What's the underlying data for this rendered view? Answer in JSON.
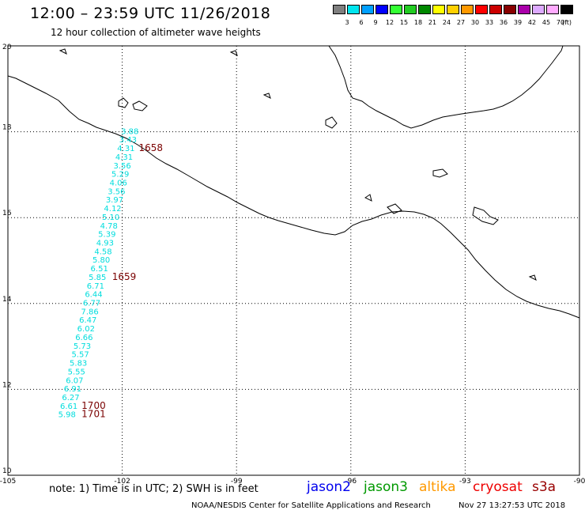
{
  "header": {
    "title": "12:00 – 23:59 UTC 11/26/2018",
    "subtitle": "12 hour collection of altimeter wave heights"
  },
  "legend": {
    "unit": "(ft)",
    "bins": [
      {
        "label": "3",
        "color": "#7f7f7f"
      },
      {
        "label": "6",
        "color": "#00e5ee"
      },
      {
        "label": "9",
        "color": "#00a0ff"
      },
      {
        "label": "12",
        "color": "#0000ff"
      },
      {
        "label": "15",
        "color": "#33ff33"
      },
      {
        "label": "18",
        "color": "#22cc22"
      },
      {
        "label": "21",
        "color": "#008800"
      },
      {
        "label": "24",
        "color": "#ffff00"
      },
      {
        "label": "27",
        "color": "#ffd000"
      },
      {
        "label": "30",
        "color": "#ff9900"
      },
      {
        "label": "33",
        "color": "#ff0000"
      },
      {
        "label": "36",
        "color": "#cc0000"
      },
      {
        "label": "39",
        "color": "#880000"
      },
      {
        "label": "42",
        "color": "#aa00aa"
      },
      {
        "label": "45",
        "color": "#ddaaff"
      },
      {
        "label": "70",
        "color": "#ffaaff"
      },
      {
        "label": "",
        "color": "#000000"
      }
    ]
  },
  "map": {
    "lon_ticks": [
      "-105",
      "-102",
      "-99",
      "-96",
      "-93",
      "-90"
    ],
    "lat_ticks": [
      "20",
      "18",
      "16",
      "14",
      "12",
      "10"
    ],
    "lon_range": [
      -105,
      -90
    ],
    "lat_range": [
      10,
      20
    ],
    "pass_color": "#00dddd",
    "time_color": "#7a0000",
    "track": [
      {
        "lat": 17.95,
        "lon": -101.8,
        "swh": "3.88"
      },
      {
        "lat": 17.75,
        "lon": -101.85,
        "swh": "3.43"
      },
      {
        "lat": 17.55,
        "lon": -101.9,
        "swh": "4.31"
      },
      {
        "lat": 17.35,
        "lon": -101.95,
        "swh": "4.31"
      },
      {
        "lat": 17.15,
        "lon": -102.0,
        "swh": "3.56"
      },
      {
        "lat": 16.95,
        "lon": -102.05,
        "swh": "5.29"
      },
      {
        "lat": 16.75,
        "lon": -102.1,
        "swh": "4.06"
      },
      {
        "lat": 16.55,
        "lon": -102.15,
        "swh": "3.56"
      },
      {
        "lat": 16.35,
        "lon": -102.2,
        "swh": "3.97"
      },
      {
        "lat": 16.15,
        "lon": -102.25,
        "swh": "4.12"
      },
      {
        "lat": 15.95,
        "lon": -102.3,
        "swh": "5.10"
      },
      {
        "lat": 15.75,
        "lon": -102.35,
        "swh": "4.78"
      },
      {
        "lat": 15.55,
        "lon": -102.4,
        "swh": "5.39"
      },
      {
        "lat": 15.35,
        "lon": -102.45,
        "swh": "4.93"
      },
      {
        "lat": 15.15,
        "lon": -102.5,
        "swh": "4.58"
      },
      {
        "lat": 14.95,
        "lon": -102.55,
        "swh": "5.80"
      },
      {
        "lat": 14.75,
        "lon": -102.6,
        "swh": "6.51"
      },
      {
        "lat": 14.55,
        "lon": -102.65,
        "swh": "5.85"
      },
      {
        "lat": 14.35,
        "lon": -102.7,
        "swh": "6.71"
      },
      {
        "lat": 14.15,
        "lon": -102.75,
        "swh": "6.44"
      },
      {
        "lat": 13.95,
        "lon": -102.8,
        "swh": "6.77"
      },
      {
        "lat": 13.75,
        "lon": -102.85,
        "swh": "7.86"
      },
      {
        "lat": 13.55,
        "lon": -102.9,
        "swh": "6.47"
      },
      {
        "lat": 13.35,
        "lon": -102.95,
        "swh": "6.02"
      },
      {
        "lat": 13.15,
        "lon": -103.0,
        "swh": "6.66"
      },
      {
        "lat": 12.95,
        "lon": -103.05,
        "swh": "5.73"
      },
      {
        "lat": 12.75,
        "lon": -103.1,
        "swh": "5.57"
      },
      {
        "lat": 12.55,
        "lon": -103.15,
        "swh": "5.83"
      },
      {
        "lat": 12.35,
        "lon": -103.2,
        "swh": "5.55"
      },
      {
        "lat": 12.15,
        "lon": -103.25,
        "swh": "6.07"
      },
      {
        "lat": 11.95,
        "lon": -103.3,
        "swh": "6.91"
      },
      {
        "lat": 11.75,
        "lon": -103.35,
        "swh": "6.27"
      },
      {
        "lat": 11.55,
        "lon": -103.4,
        "swh": "6.61"
      },
      {
        "lat": 11.35,
        "lon": -103.45,
        "swh": "5.98"
      }
    ],
    "times": [
      {
        "label": "1658",
        "lat": 17.55,
        "lon": -101.25
      },
      {
        "label": "1659",
        "lat": 14.55,
        "lon": -101.95
      },
      {
        "label": "1700",
        "lat": 11.55,
        "lon": -102.75
      },
      {
        "label": "1701",
        "lat": 11.35,
        "lon": -102.75
      }
    ]
  },
  "footer": {
    "note": "note:  1) Time is in UTC;  2) SWH is in feet",
    "satellites": [
      {
        "name": "jason2",
        "color": "#0000ee"
      },
      {
        "name": "jason3",
        "color": "#009900"
      },
      {
        "name": "altika",
        "color": "#ff9900"
      },
      {
        "name": "cryosat",
        "color": "#ee0000"
      },
      {
        "name": "s3a",
        "color": "#990000"
      }
    ],
    "credit": "NOAA/NESDIS Center for Satellite Applications and Research",
    "timestamp": "Nov 27 13:27:53 UTC 2018"
  }
}
